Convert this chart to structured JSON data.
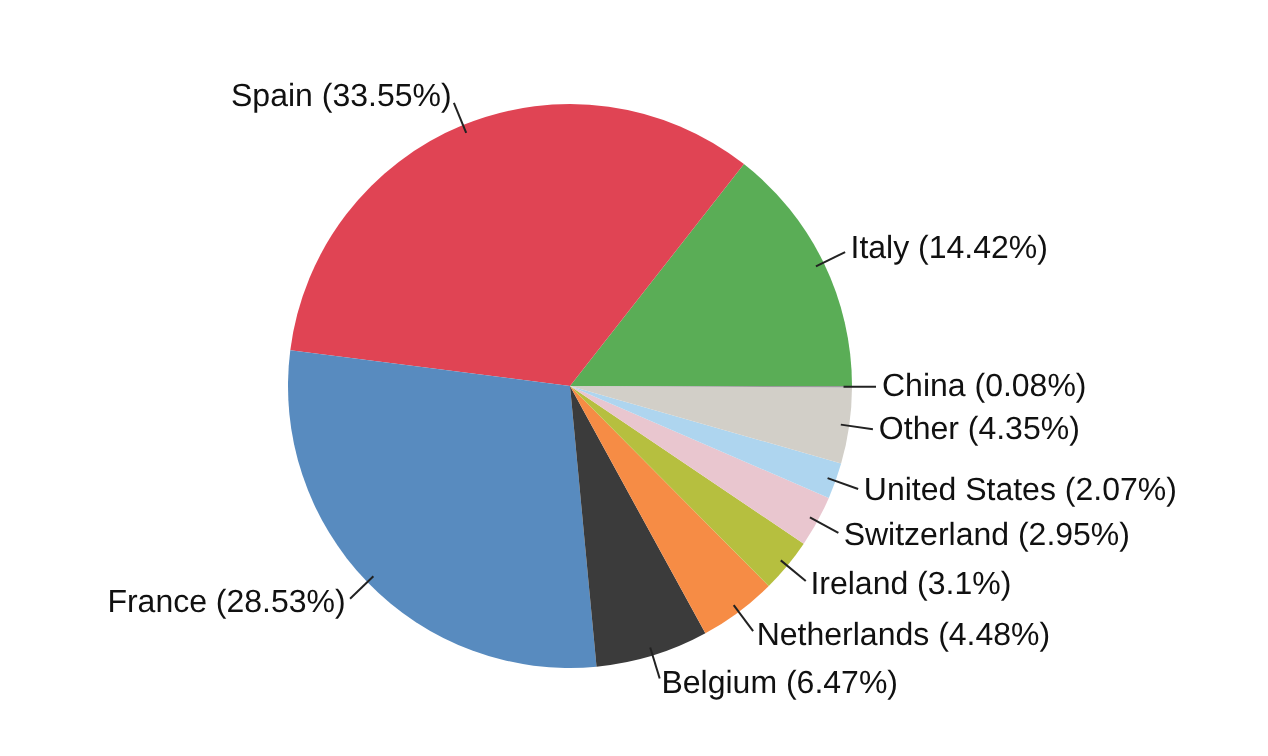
{
  "chart_data": {
    "type": "pie",
    "categories": [
      "Italy",
      "Spain",
      "France",
      "Belgium",
      "Netherlands",
      "Ireland",
      "Switzerland",
      "United States",
      "Other",
      "China"
    ],
    "values": [
      14.42,
      33.55,
      28.53,
      6.47,
      4.48,
      3.1,
      2.95,
      2.07,
      4.35,
      0.08
    ],
    "value_labels": [
      "(14.42%)",
      "(33.55%)",
      "(28.53%)",
      "(6.47%)",
      "(4.48%)",
      "(3.1%)",
      "(2.95%)",
      "(2.07%)",
      "(4.35%)",
      "(0.08%)"
    ],
    "colors": [
      "#5aad56",
      "#e04454",
      "#588bbf",
      "#3b3b3b",
      "#f68c45",
      "#b6bf3f",
      "#e9c6cf",
      "#aed5ef",
      "#d2cfc8",
      "#9a9a9a"
    ],
    "legend": false
  }
}
